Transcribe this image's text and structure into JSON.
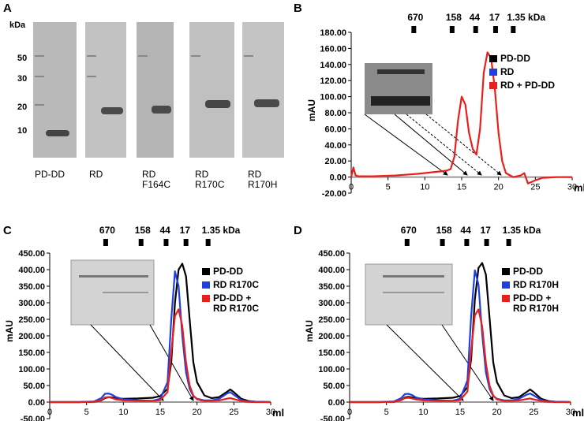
{
  "panels": [
    "A",
    "B",
    "C",
    "D"
  ],
  "gel": {
    "unit": "kDa",
    "markers": [
      "50",
      "30",
      "20",
      "10"
    ],
    "lanes": [
      "PD-DD",
      "RD",
      "RD\nF164C",
      "RD\nR170C",
      "RD\nR170H"
    ]
  },
  "chart_data": [
    {
      "type": "line",
      "ylabel": "mAU",
      "xlabel": "ml",
      "standards": [
        {
          "value": 8.5,
          "label": "670"
        },
        {
          "value": 13.7,
          "label": "158"
        },
        {
          "value": 16.9,
          "label": "44"
        },
        {
          "value": 19.6,
          "label": "17"
        },
        {
          "value": 22,
          "label": "1.35 kDa"
        }
      ],
      "xlim": [
        0,
        30
      ],
      "xticks": [
        0,
        5,
        10,
        15,
        20,
        25,
        30
      ],
      "ylim": [
        -20,
        180
      ],
      "yticks": [
        {
          "value": -20,
          "label": "-20.00"
        },
        {
          "value": 0,
          "label": "0.00"
        },
        {
          "value": 20,
          "label": "20.00"
        },
        {
          "value": 40,
          "label": "40.00"
        },
        {
          "value": 60,
          "label": "60.00"
        },
        {
          "value": 80,
          "label": "80.00"
        },
        {
          "value": 100,
          "label": "100.00"
        },
        {
          "value": 120,
          "label": "120.00"
        },
        {
          "value": 140,
          "label": "140.00"
        },
        {
          "value": 160,
          "label": "160.00"
        },
        {
          "value": 180,
          "label": "180.00"
        }
      ],
      "x": [
        0,
        0.3,
        0.6,
        1,
        3,
        6,
        9,
        11,
        12,
        13,
        13.5,
        14,
        14.5,
        15,
        15.5,
        16,
        16.5,
        17,
        17.5,
        18,
        18.5,
        19,
        19.5,
        20,
        20.5,
        21,
        22,
        23,
        23.5,
        24,
        25,
        26,
        28,
        30
      ],
      "series": [
        {
          "name": "PD-DD",
          "color": "#000000"
        },
        {
          "name": "RD",
          "color": "#1f3fe0"
        },
        {
          "name": "RD + PD-DD",
          "color": "#e8201c",
          "values": [
            0,
            12,
            2,
            1,
            1,
            2,
            4,
            6,
            7,
            8,
            10,
            25,
            70,
            100,
            90,
            55,
            35,
            28,
            60,
            130,
            155,
            148,
            110,
            55,
            20,
            5,
            0,
            2,
            5,
            -8,
            -4,
            -1,
            0,
            0
          ]
        }
      ]
    },
    {
      "type": "line",
      "ylabel": "mAU",
      "xlabel": "ml",
      "standards": [
        {
          "value": 7.6,
          "label": "670"
        },
        {
          "value": 12.4,
          "label": "158"
        },
        {
          "value": 15.8,
          "label": "44"
        },
        {
          "value": 18.5,
          "label": "17"
        },
        {
          "value": 21.5,
          "label": "1.35 kDa"
        }
      ],
      "xlim": [
        0,
        30
      ],
      "xticks": [
        0,
        5,
        10,
        15,
        20,
        25,
        30
      ],
      "ylim": [
        -50,
        450
      ],
      "yticks": [
        {
          "value": -50,
          "label": "-50.00"
        },
        {
          "value": 0,
          "label": "0.00"
        },
        {
          "value": 50,
          "label": "50.00"
        },
        {
          "value": 100,
          "label": "100.00"
        },
        {
          "value": 150,
          "label": "150.00"
        },
        {
          "value": 200,
          "label": "200.00"
        },
        {
          "value": 250,
          "label": "250.00"
        },
        {
          "value": 300,
          "label": "300.00"
        },
        {
          "value": 350,
          "label": "350.00"
        },
        {
          "value": 400,
          "label": "400.00"
        },
        {
          "value": 450,
          "label": "450.00"
        }
      ],
      "x": [
        0,
        2,
        4,
        6,
        7,
        7.5,
        8,
        8.5,
        9,
        10,
        12,
        14,
        15,
        16,
        16.5,
        17,
        17.5,
        18,
        18.5,
        19,
        19.5,
        20,
        21,
        22,
        23,
        24,
        24.5,
        25,
        26,
        27,
        28,
        30
      ],
      "series": [
        {
          "name": "PD-DD",
          "color": "#000000",
          "values": [
            0,
            0,
            0,
            1,
            5,
            12,
            15,
            14,
            12,
            10,
            11,
            13,
            18,
            40,
            120,
            300,
            400,
            418,
            380,
            250,
            120,
            60,
            20,
            12,
            15,
            30,
            38,
            30,
            10,
            3,
            1,
            0
          ]
        },
        {
          "name": "RD R170C",
          "color": "#1f3fe0",
          "values": [
            0,
            0,
            0,
            2,
            12,
            25,
            26,
            22,
            15,
            8,
            5,
            4,
            10,
            60,
            250,
            395,
            350,
            200,
            90,
            40,
            18,
            10,
            5,
            5,
            10,
            25,
            30,
            22,
            6,
            2,
            1,
            0
          ]
        },
        {
          "name": "PD-DD +\nRD R170C",
          "color": "#e8201c",
          "values": [
            0,
            0,
            0,
            1,
            6,
            14,
            15,
            12,
            8,
            5,
            3,
            3,
            6,
            30,
            150,
            260,
            280,
            230,
            120,
            50,
            20,
            8,
            3,
            3,
            5,
            10,
            12,
            9,
            3,
            1,
            0,
            0
          ]
        }
      ]
    },
    {
      "type": "line",
      "ylabel": "mAU",
      "xlabel": "ml",
      "standards": [
        {
          "value": 7.8,
          "label": "670"
        },
        {
          "value": 12.6,
          "label": "158"
        },
        {
          "value": 15.9,
          "label": "44"
        },
        {
          "value": 18.6,
          "label": "17"
        },
        {
          "value": 21.6,
          "label": "1.35 kDa"
        }
      ],
      "xlim": [
        0,
        30
      ],
      "xticks": [
        0,
        5,
        10,
        15,
        20,
        25,
        30
      ],
      "ylim": [
        -50,
        450
      ],
      "yticks": [
        {
          "value": -50,
          "label": "-50.00"
        },
        {
          "value": 0,
          "label": "0.00"
        },
        {
          "value": 50,
          "label": "50.00"
        },
        {
          "value": 100,
          "label": "100.00"
        },
        {
          "value": 150,
          "label": "150.00"
        },
        {
          "value": 200,
          "label": "200.00"
        },
        {
          "value": 250,
          "label": "250.00"
        },
        {
          "value": 300,
          "label": "300.00"
        },
        {
          "value": 350,
          "label": "350.00"
        },
        {
          "value": 400,
          "label": "400.00"
        },
        {
          "value": 450,
          "label": "450.00"
        }
      ],
      "x": [
        0,
        2,
        4,
        6,
        7,
        7.5,
        8,
        8.5,
        9,
        10,
        12,
        14,
        15,
        16,
        16.5,
        17,
        17.5,
        18,
        18.5,
        19,
        19.5,
        20,
        21,
        22,
        23,
        24,
        24.5,
        25,
        26,
        27,
        28,
        30
      ],
      "series": [
        {
          "name": "PD-DD",
          "color": "#000000",
          "values": [
            0,
            0,
            0,
            1,
            6,
            14,
            16,
            14,
            12,
            10,
            11,
            13,
            18,
            45,
            130,
            310,
            405,
            420,
            385,
            255,
            120,
            60,
            20,
            12,
            15,
            30,
            38,
            30,
            10,
            3,
            1,
            0
          ]
        },
        {
          "name": "RD R170H",
          "color": "#1f3fe0",
          "values": [
            0,
            0,
            0,
            2,
            12,
            24,
            25,
            21,
            14,
            8,
            5,
            4,
            10,
            65,
            260,
            398,
            355,
            205,
            90,
            40,
            18,
            10,
            5,
            5,
            10,
            22,
            26,
            20,
            6,
            2,
            1,
            0
          ]
        },
        {
          "name": "PD-DD +\nRD R170H",
          "color": "#e8201c",
          "values": [
            0,
            0,
            0,
            1,
            6,
            12,
            13,
            11,
            8,
            5,
            3,
            3,
            6,
            32,
            155,
            262,
            280,
            228,
            118,
            50,
            20,
            8,
            3,
            3,
            5,
            9,
            11,
            8,
            3,
            1,
            0,
            0
          ]
        }
      ]
    }
  ]
}
